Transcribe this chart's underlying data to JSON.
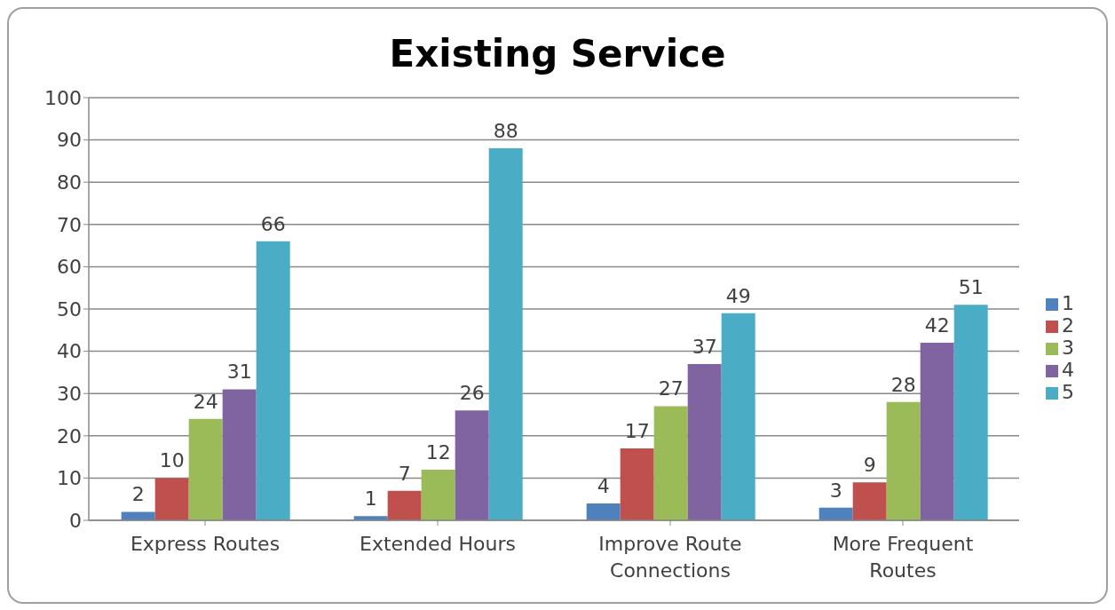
{
  "chart_data": {
    "type": "bar",
    "title": "Existing Service",
    "categories": [
      "Express Routes",
      "Extended Hours",
      "Improve Route Connections",
      "More Frequent Routes"
    ],
    "series": [
      {
        "name": "1",
        "color": "#4f81bd",
        "values": [
          2,
          1,
          4,
          3
        ]
      },
      {
        "name": "2",
        "color": "#c0504d",
        "values": [
          10,
          7,
          17,
          9
        ]
      },
      {
        "name": "3",
        "color": "#9bbb59",
        "values": [
          24,
          12,
          27,
          28
        ]
      },
      {
        "name": "4",
        "color": "#8064a2",
        "values": [
          31,
          26,
          37,
          42
        ]
      },
      {
        "name": "5",
        "color": "#4bacc6",
        "values": [
          66,
          88,
          49,
          51
        ]
      }
    ],
    "ylim": [
      0,
      100
    ],
    "yticks": [
      0,
      10,
      20,
      30,
      40,
      50,
      60,
      70,
      80,
      90,
      100
    ],
    "grid": "y",
    "legend": "right",
    "data_labels": true
  }
}
